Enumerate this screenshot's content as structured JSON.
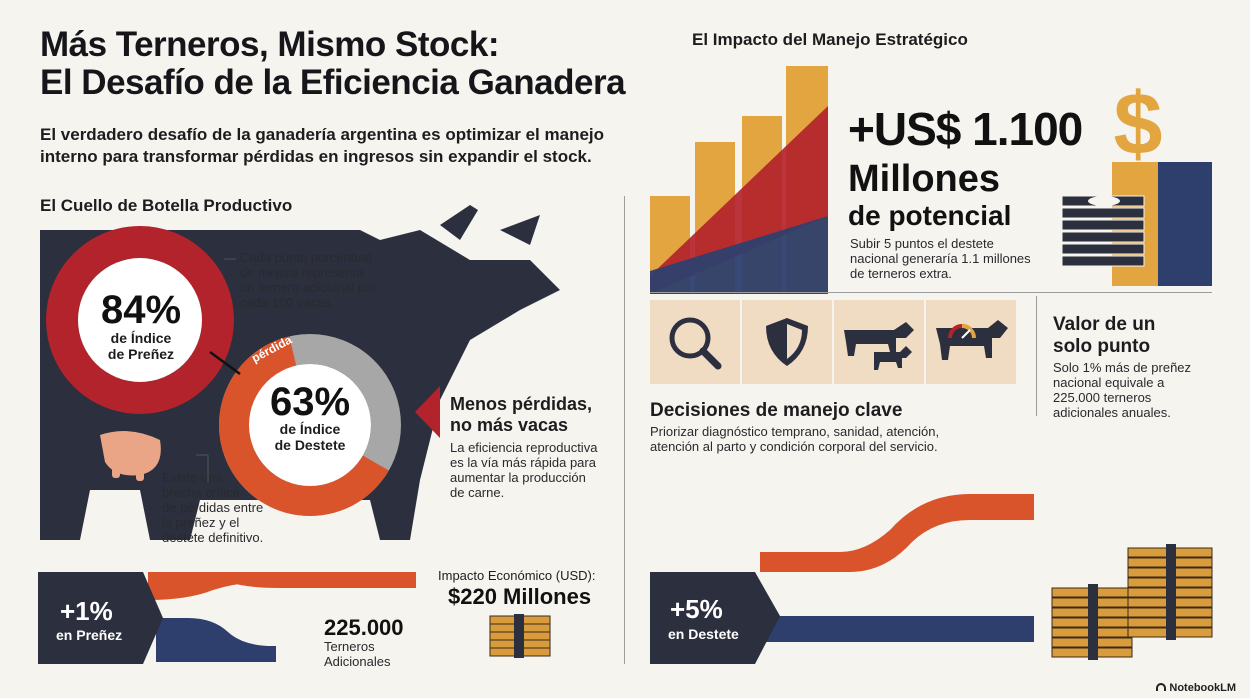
{
  "header": {
    "title_line1": "Más Terneros, Mismo Stock:",
    "title_line2": "El Desafío de la Eficiencia Ganadera",
    "subtitle_line1": "El verdadero desafío de la ganadería argentina es optimizar el manejo",
    "subtitle_line2": "interno para transformar pérdidas en ingresos sin expandir el stock."
  },
  "left": {
    "section_title": "El Cuello de Botella Productivo",
    "prenez": {
      "value": "84%",
      "label1": "de Índice",
      "label2": "de Preñez",
      "fraction": 0.84
    },
    "destete": {
      "value": "63%",
      "label1": "de Índice",
      "label2": "de Destete",
      "fraction": 0.63
    },
    "loss_label": "pérdida",
    "note_top": [
      "Cada punto porcentual",
      "de mejora representa",
      "un ternero adicional por",
      "cada 100 vacas."
    ],
    "note_bottom": [
      "Existe una",
      "brecha crítica",
      "de pérdidas entre",
      "la preñez y el",
      "destete definitivo."
    ],
    "menos": {
      "title1": "Menos pérdidas,",
      "title2": "no más vacas",
      "body": [
        "La eficiencia reproductiva",
        "es la vía más rápida para",
        "aumentar la producción",
        "de carne."
      ]
    },
    "flow": {
      "value": "+1%",
      "label": "en Preñez",
      "terneros_value": "225.000",
      "terneros_label1": "Terneros",
      "terneros_label2": "Adicionales",
      "impacto_label": "Impacto Económico (USD):",
      "impacto_value": "$220 Millones"
    }
  },
  "right": {
    "section_title": "El Impacto del Manejo Estratégico",
    "headline1": "+US$ 1.100",
    "headline2": "Millones",
    "headline3": "de potencial",
    "headline_note": [
      "Subir 5 puntos el destete",
      "nacional generaría 1.1 millones",
      "de terneros extra."
    ],
    "icons": [
      "magnifier-icon",
      "shield-icon",
      "cow-and-calf-icon",
      "cow-condition-gauge-icon"
    ],
    "decisiones_title": "Decisiones de manejo clave",
    "decisiones_body": [
      "Priorizar diagnóstico temprano, sanidad, atención,",
      "atención al parto y condición corporal del servicio."
    ],
    "valor_title1": "Valor de un",
    "valor_title2": "solo punto",
    "valor_body": [
      "Solo 1% más de preñez",
      "nacional equivale a",
      "225.000 terneros",
      "adicionales anuales."
    ],
    "flow": {
      "value": "+5%",
      "label": "en Destete"
    }
  },
  "footer": {
    "brand": "NotebookLM"
  },
  "colors": {
    "red": "#b3232b",
    "orange": "#d9542b",
    "navy": "#2e3f6e",
    "dark": "#2b2f3e",
    "gold": "#e3a540",
    "grey": "#a7a7a7"
  }
}
